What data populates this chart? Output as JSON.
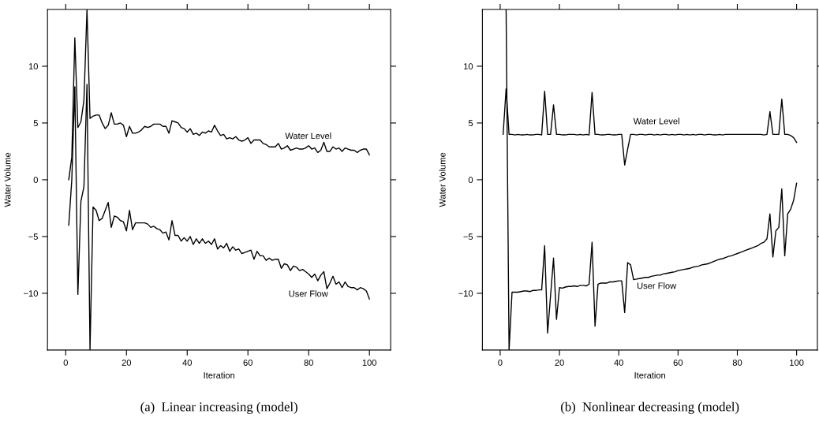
{
  "chart_data": [
    {
      "type": "line",
      "title": "(a)  Linear increasing (model)",
      "xlabel": "Iteration",
      "ylabel": "Water Volume",
      "x": [
        1,
        2,
        3,
        4,
        5,
        6,
        7,
        8,
        9,
        10,
        11,
        12,
        13,
        14,
        15,
        16,
        17,
        18,
        19,
        20,
        21,
        22,
        23,
        24,
        25,
        26,
        27,
        28,
        29,
        30,
        31,
        32,
        33,
        34,
        35,
        36,
        37,
        38,
        39,
        40,
        41,
        42,
        43,
        44,
        45,
        46,
        47,
        48,
        49,
        50,
        51,
        52,
        53,
        54,
        55,
        56,
        57,
        58,
        59,
        60,
        61,
        62,
        63,
        64,
        65,
        66,
        67,
        68,
        69,
        70,
        71,
        72,
        73,
        74,
        75,
        76,
        77,
        78,
        79,
        80,
        81,
        82,
        83,
        84,
        85,
        86,
        87,
        88,
        89,
        90,
        91,
        92,
        93,
        94,
        95,
        96,
        97,
        98,
        99,
        100
      ],
      "series": [
        {
          "name": "Water Level",
          "color": "#000000",
          "values": [
            0,
            2,
            12.5,
            4.6,
            5.1,
            7,
            15,
            5.4,
            5.6,
            5.7,
            5.7,
            5.0,
            4.5,
            4.8,
            5.9,
            4.9,
            4.9,
            5.0,
            4.8,
            3.8,
            4.7,
            4.1,
            4.1,
            4.2,
            4.4,
            4.7,
            4.6,
            4.7,
            4.9,
            4.9,
            4.9,
            4.7,
            4.7,
            4.1,
            5.2,
            5.1,
            5.0,
            4.6,
            4.5,
            4.2,
            4.5,
            4.0,
            4.1,
            3.9,
            4.2,
            4.1,
            4.3,
            4.2,
            4.8,
            4.3,
            3.9,
            4.0,
            3.6,
            3.7,
            3.6,
            3.8,
            3.5,
            3.4,
            3.5,
            3.7,
            3.2,
            3.5,
            3.5,
            3.5,
            3.2,
            3.1,
            2.9,
            2.9,
            2.9,
            3.2,
            2.7,
            2.8,
            3.0,
            2.6,
            2.7,
            2.8,
            2.7,
            2.7,
            2.8,
            3.0,
            2.7,
            2.8,
            2.4,
            2.6,
            3.3,
            2.5,
            2.5,
            2.9,
            2.7,
            2.8,
            2.5,
            2.8,
            2.7,
            2.6,
            2.6,
            2.4,
            2.6,
            2.7,
            2.7,
            2.2
          ]
        },
        {
          "name": "User Flow",
          "color": "#000000",
          "values": [
            -4,
            0,
            8.2,
            -10.1,
            -1.9,
            -0.6,
            8.4,
            -15,
            -2.4,
            -2.7,
            -3.6,
            -3.4,
            -2.7,
            -2.0,
            -4.2,
            -3.2,
            -3.3,
            -3.6,
            -3.7,
            -4.5,
            -2.7,
            -4.4,
            -3.8,
            -3.8,
            -3.8,
            -3.8,
            -3.9,
            -4.2,
            -4.1,
            -4.3,
            -4.4,
            -4.7,
            -4.6,
            -5.3,
            -3.6,
            -4.9,
            -4.9,
            -5.4,
            -5.1,
            -5.4,
            -5.0,
            -5.7,
            -5.2,
            -5.6,
            -5.2,
            -5.6,
            -5.4,
            -5.7,
            -5.2,
            -6.1,
            -5.8,
            -6.0,
            -5.6,
            -6.3,
            -5.9,
            -6.2,
            -6.1,
            -6.5,
            -6.4,
            -6.3,
            -6.2,
            -7.0,
            -6.3,
            -6.7,
            -6.7,
            -7.1,
            -6.9,
            -7.1,
            -7.0,
            -7.0,
            -7.8,
            -7.4,
            -7.5,
            -8.0,
            -7.6,
            -7.7,
            -8.0,
            -7.9,
            -8.1,
            -8.3,
            -8.6,
            -8.3,
            -8.9,
            -8.4,
            -8.1,
            -9.6,
            -9.1,
            -8.5,
            -9.2,
            -9.0,
            -9.5,
            -9.0,
            -9.4,
            -9.5,
            -9.5,
            -9.7,
            -9.5,
            -9.6,
            -9.8,
            -10.5
          ]
        }
      ],
      "xlim": [
        -6,
        107
      ],
      "ylim": [
        -15,
        15
      ],
      "xticks": [
        0,
        20,
        40,
        60,
        80,
        100
      ],
      "yticks": [
        -10,
        -5,
        0,
        5,
        10
      ],
      "grid": false,
      "legend": false
    },
    {
      "type": "line",
      "title": "(b)  Nonlinear decreasing (model)",
      "xlabel": "Iteration",
      "ylabel": "Water Volume",
      "x": [
        1,
        2,
        3,
        4,
        5,
        6,
        7,
        8,
        9,
        10,
        11,
        12,
        13,
        14,
        15,
        16,
        17,
        18,
        19,
        20,
        21,
        22,
        23,
        24,
        25,
        26,
        27,
        28,
        29,
        30,
        31,
        32,
        33,
        34,
        35,
        36,
        37,
        38,
        39,
        40,
        41,
        42,
        43,
        44,
        45,
        46,
        47,
        48,
        49,
        50,
        51,
        52,
        53,
        54,
        55,
        56,
        57,
        58,
        59,
        60,
        61,
        62,
        63,
        64,
        65,
        66,
        67,
        68,
        69,
        70,
        71,
        72,
        73,
        74,
        75,
        76,
        77,
        78,
        79,
        80,
        81,
        82,
        83,
        84,
        85,
        86,
        87,
        88,
        89,
        90,
        91,
        92,
        93,
        94,
        95,
        96,
        97,
        98,
        99,
        100
      ],
      "series": [
        {
          "name": "Water Level",
          "color": "#000000",
          "values": [
            4,
            8,
            4,
            4.0,
            3.95,
            4.0,
            3.95,
            3.95,
            4.0,
            3.95,
            3.95,
            4.0,
            4.0,
            3.95,
            7.8,
            4.0,
            4.0,
            6.6,
            4.0,
            4.0,
            3.95,
            3.95,
            4.0,
            4.0,
            4.0,
            3.95,
            4.0,
            3.95,
            4.0,
            3.95,
            7.7,
            4.0,
            4.0,
            3.95,
            3.95,
            4.0,
            4.0,
            3.95,
            3.95,
            4.0,
            4.0,
            1.3,
            2.7,
            4.0,
            4.0,
            3.95,
            4.0,
            4.0,
            3.95,
            4.0,
            4.0,
            3.95,
            4.0,
            3.95,
            4.0,
            4.0,
            3.95,
            4.0,
            3.95,
            4.0,
            4.0,
            3.95,
            4.0,
            3.95,
            4.0,
            3.95,
            4.0,
            4.0,
            3.95,
            4.0,
            4.0,
            3.95,
            3.95,
            4.0,
            3.95,
            4.0,
            4.0,
            4.0,
            4.0,
            4.0,
            4.0,
            4.0,
            4.0,
            4.0,
            4.0,
            4.0,
            4.0,
            4.0,
            3.95,
            4.0,
            6.0,
            4.0,
            4.0,
            4.0,
            7.1,
            4.0,
            4.0,
            3.9,
            3.7,
            3.3
          ]
        },
        {
          "name": "User Flow",
          "color": "#000000",
          "values": [
            null,
            15,
            -15,
            -9.9,
            -9.9,
            -9.9,
            -9.85,
            -9.8,
            -9.8,
            -9.85,
            -9.75,
            -9.75,
            -9.7,
            -9.7,
            -5.8,
            -13.5,
            -10.2,
            -6.9,
            -12.3,
            -9.5,
            -9.55,
            -9.45,
            -9.4,
            -9.4,
            -9.35,
            -9.4,
            -9.3,
            -9.3,
            -9.35,
            -9.2,
            -5.5,
            -12.9,
            -9.2,
            -9.1,
            -9.1,
            -9.1,
            -9.0,
            -9.0,
            -8.95,
            -8.9,
            -8.9,
            -11.7,
            -7.3,
            -7.5,
            -8.8,
            -8.75,
            -8.7,
            -8.65,
            -8.6,
            -8.6,
            -8.5,
            -8.45,
            -8.4,
            -8.4,
            -8.3,
            -8.25,
            -8.2,
            -8.15,
            -8.1,
            -8.0,
            -7.95,
            -7.9,
            -7.85,
            -7.8,
            -7.7,
            -7.65,
            -7.6,
            -7.5,
            -7.45,
            -7.4,
            -7.3,
            -7.2,
            -7.1,
            -7.0,
            -6.95,
            -6.85,
            -6.75,
            -6.7,
            -6.6,
            -6.5,
            -6.4,
            -6.3,
            -6.2,
            -6.1,
            -6.0,
            -5.9,
            -5.8,
            -5.6,
            -5.5,
            -5.2,
            -3.0,
            -6.8,
            -4.5,
            -4.2,
            -0.8,
            -6.7,
            -3.0,
            -2.6,
            -1.8,
            -0.3
          ]
        }
      ],
      "xlim": [
        -6,
        107
      ],
      "ylim": [
        -15,
        15
      ],
      "xticks": [
        0,
        20,
        40,
        60,
        80,
        100
      ],
      "yticks": [
        -10,
        -5,
        0,
        5,
        10
      ],
      "grid": false,
      "legend": false
    }
  ]
}
